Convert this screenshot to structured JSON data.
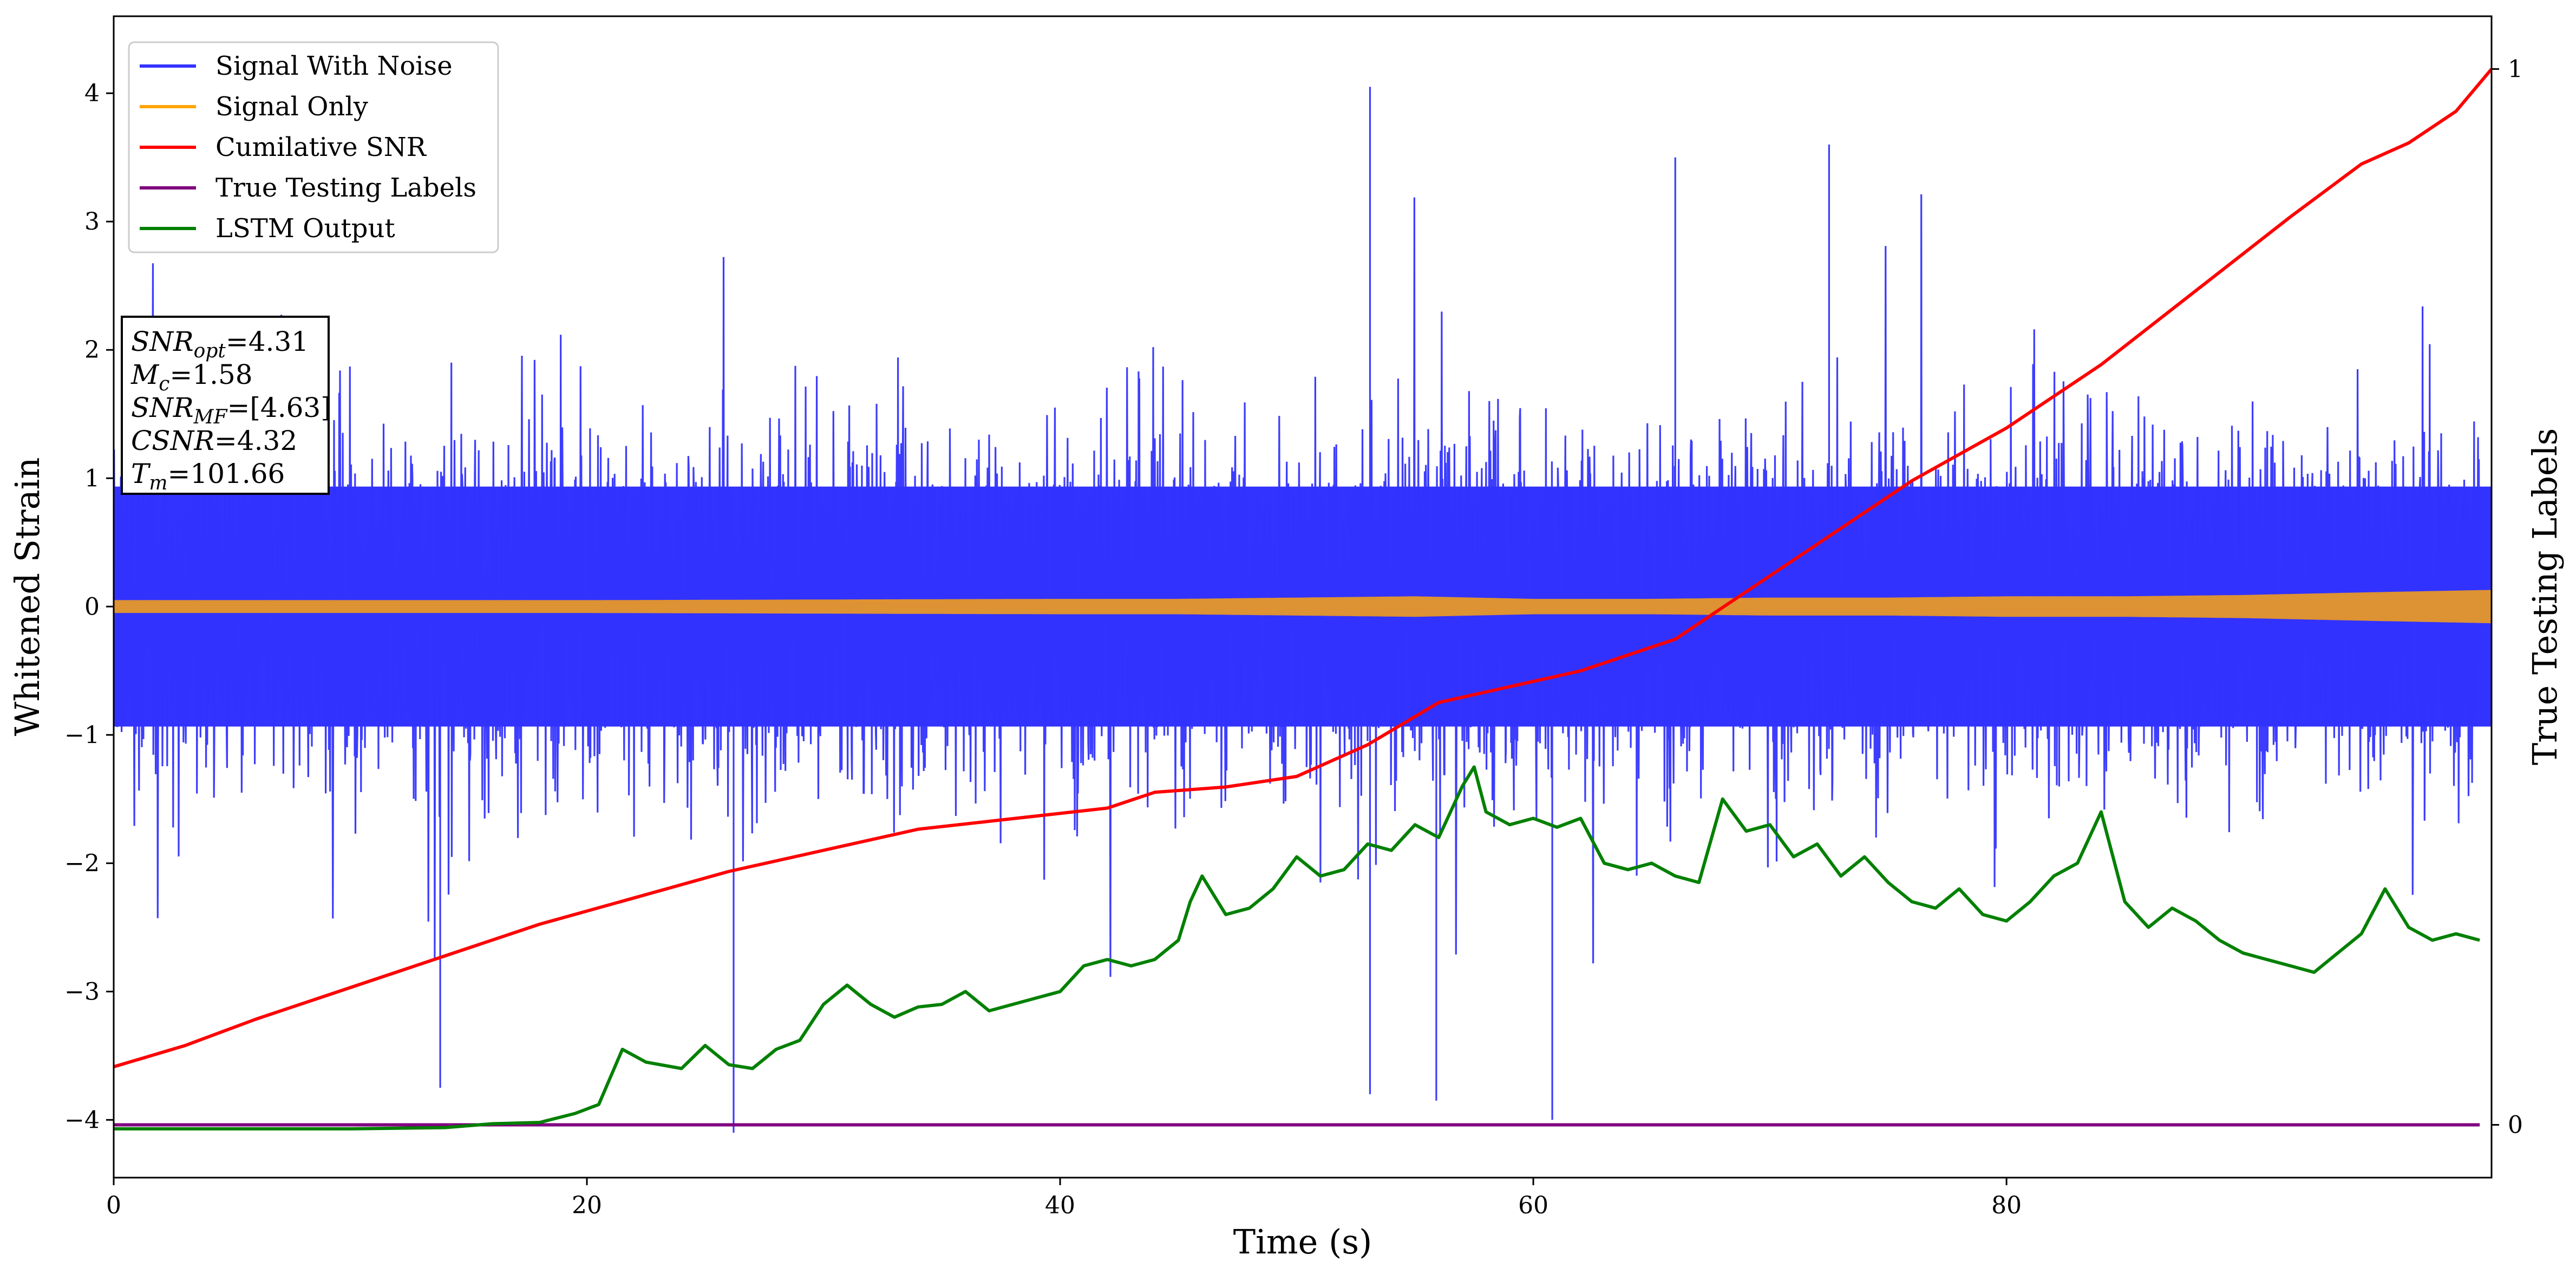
{
  "chart_data": {
    "type": "line",
    "xlabel": "Time (s)",
    "ylabel": "Whitened Strain",
    "y2label": "True Testing Labels",
    "xlim": [
      0,
      100.5
    ],
    "ylim": [
      -4.45,
      4.6
    ],
    "y2lim": [
      -0.05,
      1.05
    ],
    "xticks": [
      0,
      20,
      40,
      60,
      80
    ],
    "yticks": [
      -4,
      -3,
      -2,
      -1,
      0,
      1,
      2,
      3,
      4
    ],
    "y2ticks": [
      0,
      1
    ],
    "grid": false,
    "legend_position": "top-left",
    "legend": [
      {
        "label": "Signal With Noise",
        "color": "#3333ff"
      },
      {
        "label": "Signal Only",
        "color": "#ffa500"
      },
      {
        "label": "Cumilative SNR",
        "color": "#ff0000"
      },
      {
        "label": "True Testing Labels",
        "color": "#800080"
      },
      {
        "label": "LSTM Output",
        "color": "#008000"
      }
    ],
    "annotation": [
      {
        "base": "SNR",
        "sub": "opt",
        "value": "=4.31"
      },
      {
        "base": "M",
        "sub": "c",
        "value": "=1.58"
      },
      {
        "base": "SNR",
        "sub": "MF",
        "value": "=[4.63]"
      },
      {
        "base": "CSNR",
        "sub": "",
        "value": "=4.32"
      },
      {
        "base": "T",
        "sub": "m",
        "value": "=101.66"
      }
    ],
    "series": [
      {
        "name": "Signal With Noise",
        "axis": "left",
        "color": "#3333ff",
        "style": "noise band",
        "typical_max": 1.7,
        "typical_min": -1.7,
        "extreme_max": 4.2,
        "extreme_min": -4.1
      },
      {
        "name": "Signal Only",
        "axis": "left",
        "color": "#ffa500",
        "style": "oscillation envelope",
        "x": [
          0,
          20,
          40,
          45,
          50,
          55,
          60,
          65,
          70,
          75,
          80,
          85,
          90,
          95,
          100.5
        ],
        "amplitude": [
          0.05,
          0.05,
          0.06,
          0.06,
          0.07,
          0.08,
          0.06,
          0.06,
          0.07,
          0.07,
          0.08,
          0.08,
          0.09,
          0.11,
          0.13
        ]
      },
      {
        "name": "Cumilative SNR",
        "axis": "right",
        "color": "#ff0000",
        "x": [
          0,
          3,
          6,
          10,
          14,
          18,
          22,
          26,
          30,
          34,
          38,
          42,
          44,
          47,
          50,
          53,
          56,
          58,
          62,
          66,
          68,
          72,
          76,
          80,
          84,
          88,
          92,
          95,
          97,
          99,
          100.5
        ],
        "values": [
          0.055,
          0.075,
          0.1,
          0.13,
          0.16,
          0.19,
          0.215,
          0.24,
          0.26,
          0.28,
          0.29,
          0.3,
          0.315,
          0.32,
          0.33,
          0.36,
          0.4,
          0.41,
          0.43,
          0.46,
          0.49,
          0.55,
          0.61,
          0.66,
          0.72,
          0.79,
          0.86,
          0.91,
          0.93,
          0.96,
          1.0
        ]
      },
      {
        "name": "True Testing Labels",
        "axis": "right",
        "color": "#800080",
        "x": [
          0,
          100
        ],
        "values": [
          0,
          0
        ]
      },
      {
        "name": "LSTM Output",
        "axis": "left",
        "color": "#008000",
        "x": [
          0,
          10,
          14,
          16,
          18,
          19.5,
          20.5,
          21.5,
          22.5,
          24,
          25,
          26,
          27,
          28,
          29,
          30,
          31,
          32,
          33,
          34,
          35,
          36,
          37,
          38,
          40,
          41,
          42,
          43,
          44,
          45,
          45.5,
          46,
          47,
          48,
          49,
          50,
          51,
          52,
          53,
          54,
          55,
          56,
          57,
          57.5,
          58,
          59,
          60,
          61,
          62,
          63,
          64,
          65,
          66,
          67,
          68,
          69,
          70,
          71,
          72,
          73,
          74,
          75,
          76,
          77,
          78,
          79,
          80,
          81,
          82,
          83,
          84,
          85,
          86,
          87,
          88,
          89,
          90,
          91,
          92,
          93,
          94,
          95,
          96,
          97,
          98,
          99,
          100
        ],
        "values": [
          -4.07,
          -4.07,
          -4.06,
          -4.03,
          -4.02,
          -3.95,
          -3.88,
          -3.45,
          -3.55,
          -3.6,
          -3.42,
          -3.57,
          -3.6,
          -3.45,
          -3.38,
          -3.1,
          -2.95,
          -3.1,
          -3.2,
          -3.12,
          -3.1,
          -3.0,
          -3.15,
          -3.1,
          -3.0,
          -2.8,
          -2.75,
          -2.8,
          -2.75,
          -2.6,
          -2.3,
          -2.1,
          -2.4,
          -2.35,
          -2.2,
          -1.95,
          -2.1,
          -2.05,
          -1.85,
          -1.9,
          -1.7,
          -1.8,
          -1.4,
          -1.25,
          -1.6,
          -1.7,
          -1.65,
          -1.72,
          -1.65,
          -2.0,
          -2.05,
          -2.0,
          -2.1,
          -2.15,
          -1.5,
          -1.75,
          -1.7,
          -1.95,
          -1.85,
          -2.1,
          -1.95,
          -2.15,
          -2.3,
          -2.35,
          -2.2,
          -2.4,
          -2.45,
          -2.3,
          -2.1,
          -2.0,
          -1.6,
          -2.3,
          -2.5,
          -2.35,
          -2.45,
          -2.6,
          -2.7,
          -2.75,
          -2.8,
          -2.85,
          -2.7,
          -2.55,
          -2.2,
          -2.5,
          -2.6,
          -2.55,
          -2.6
        ]
      }
    ]
  }
}
